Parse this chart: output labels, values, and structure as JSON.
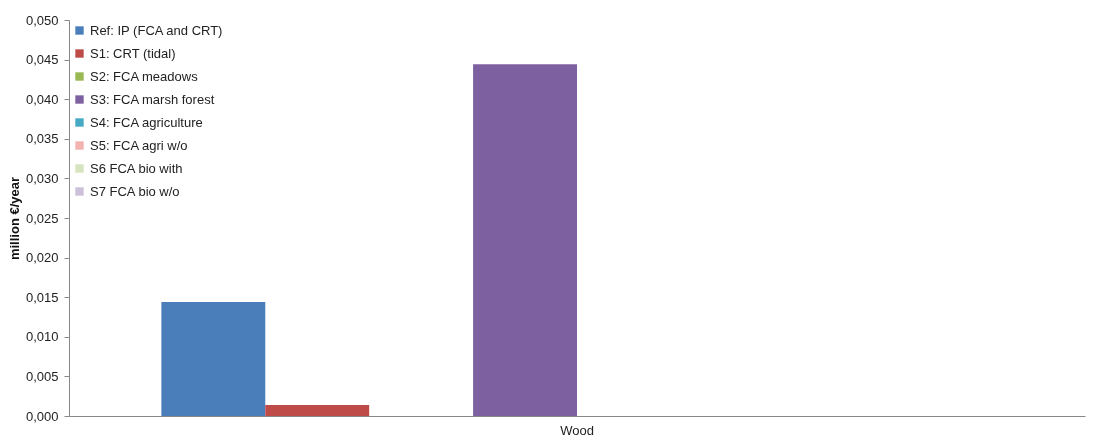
{
  "chart_data": {
    "type": "bar",
    "ylabel": "million €/year",
    "categories": [
      "Wood"
    ],
    "series": [
      {
        "name": "Ref: IP (FCA and CRT)",
        "color": "#4a7ebb",
        "values": [
          0.0144
        ]
      },
      {
        "name": "S1: CRT (tidal)",
        "color": "#be4b48",
        "values": [
          0.0014
        ]
      },
      {
        "name": "S2: FCA meadows",
        "color": "#98b954",
        "values": [
          0
        ]
      },
      {
        "name": "S3: FCA marsh forest",
        "color": "#7d60a0",
        "values": [
          0.0444
        ]
      },
      {
        "name": "S4: FCA agriculture",
        "color": "#46aac5",
        "values": [
          0
        ]
      },
      {
        "name": "S5: FCA agri w/o",
        "color": "#f2b2b0",
        "values": [
          0
        ]
      },
      {
        "name": "S6 FCA bio with",
        "color": "#d7e4bd",
        "values": [
          0
        ]
      },
      {
        "name": "S7 FCA bio w/o",
        "color": "#ccc1da",
        "values": [
          0
        ]
      }
    ],
    "ylim": [
      0,
      0.05
    ],
    "yticks": [
      {
        "value": 0,
        "label": "0,000"
      },
      {
        "value": 0.005,
        "label": "0,005"
      },
      {
        "value": 0.01,
        "label": "0,010"
      },
      {
        "value": 0.015,
        "label": "0,015"
      },
      {
        "value": 0.02,
        "label": "0,020"
      },
      {
        "value": 0.025,
        "label": "0,025"
      },
      {
        "value": 0.03,
        "label": "0,030"
      },
      {
        "value": 0.035,
        "label": "0,035"
      },
      {
        "value": 0.04,
        "label": "0,040"
      },
      {
        "value": 0.045,
        "label": "0,045"
      },
      {
        "value": 0.05,
        "label": "0,050"
      }
    ],
    "grid": false,
    "legend": "top left"
  }
}
